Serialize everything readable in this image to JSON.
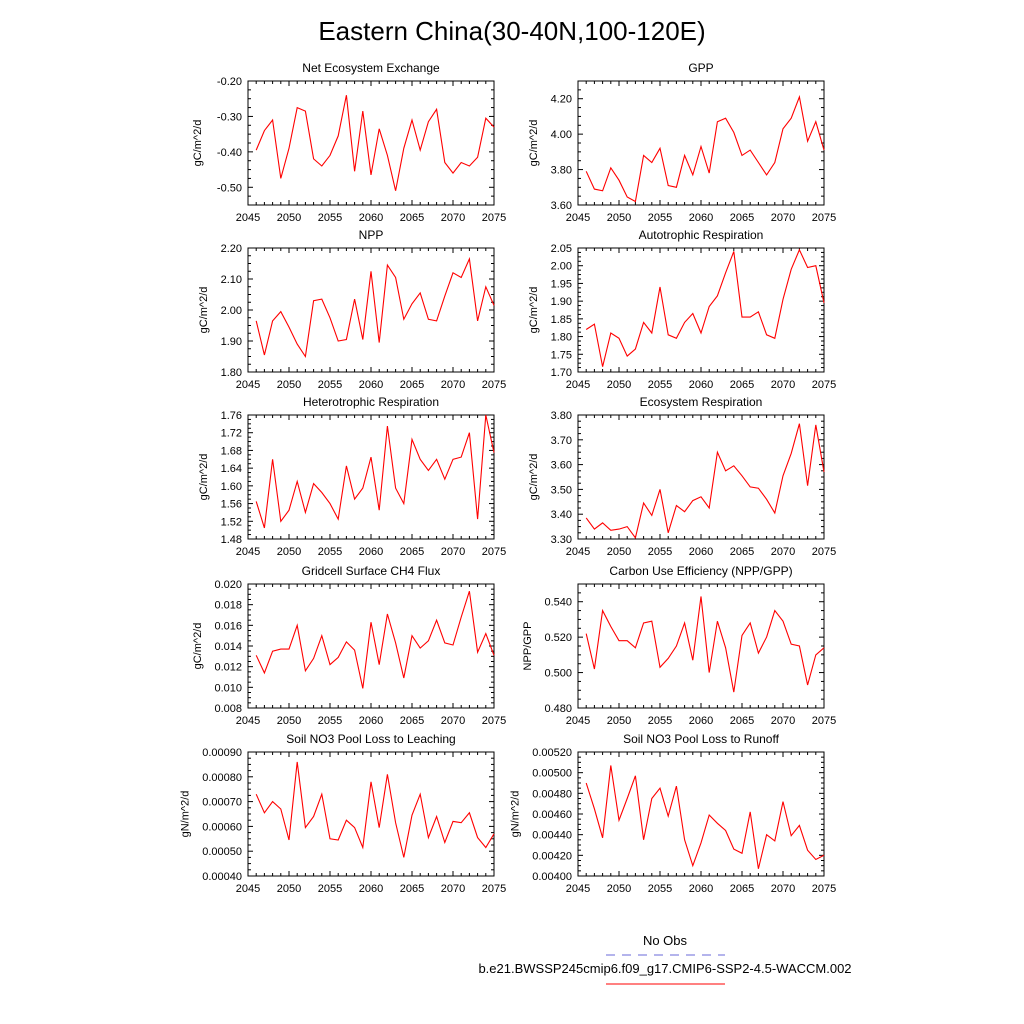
{
  "title": "Eastern China(30-40N,100-120E)",
  "legend": {
    "obs_label": "No Obs",
    "model_label": "b.e21.BWSSP245cmip6.f09_g17.CMIP6-SSP2-4.5-WACCM.002",
    "obs_color": "#6a6ad8",
    "model_color": "#ff0000"
  },
  "line_color": "#ff0000",
  "chart_data": [
    {
      "type": "line",
      "title": "Net Ecosystem Exchange",
      "ylabel": "gC/m^2/d",
      "xlim": [
        2045,
        2075
      ],
      "xticks": [
        "2045",
        "2050",
        "2055",
        "2060",
        "2065",
        "2070",
        "2075"
      ],
      "ylim": [
        -0.55,
        -0.2
      ],
      "yticks": [
        "-0.50",
        "-0.40",
        "-0.30",
        "-0.20"
      ],
      "x": [
        2046,
        2047,
        2048,
        2049,
        2050,
        2051,
        2052,
        2053,
        2054,
        2055,
        2056,
        2057,
        2058,
        2059,
        2060,
        2061,
        2062,
        2063,
        2064,
        2065,
        2066,
        2067,
        2068,
        2069,
        2070,
        2071,
        2072,
        2073,
        2074,
        2075
      ],
      "values": [
        -0.395,
        -0.34,
        -0.31,
        -0.475,
        -0.39,
        -0.275,
        -0.285,
        -0.42,
        -0.44,
        -0.41,
        -0.355,
        -0.24,
        -0.455,
        -0.285,
        -0.465,
        -0.335,
        -0.41,
        -0.51,
        -0.39,
        -0.31,
        -0.395,
        -0.315,
        -0.28,
        -0.43,
        -0.46,
        -0.43,
        -0.44,
        -0.415,
        -0.305,
        -0.33
      ]
    },
    {
      "type": "line",
      "title": "GPP",
      "ylabel": "gC/m^2/d",
      "xlim": [
        2045,
        2075
      ],
      "xticks": [
        "2045",
        "2050",
        "2055",
        "2060",
        "2065",
        "2070",
        "2075"
      ],
      "ylim": [
        3.6,
        4.3
      ],
      "yticks": [
        "3.60",
        "3.80",
        "4.00",
        "4.20"
      ],
      "x": [
        2046,
        2047,
        2048,
        2049,
        2050,
        2051,
        2052,
        2053,
        2054,
        2055,
        2056,
        2057,
        2058,
        2059,
        2060,
        2061,
        2062,
        2063,
        2064,
        2065,
        2066,
        2067,
        2068,
        2069,
        2070,
        2071,
        2072,
        2073,
        2074,
        2075
      ],
      "values": [
        3.79,
        3.69,
        3.68,
        3.81,
        3.74,
        3.645,
        3.62,
        3.88,
        3.84,
        3.92,
        3.71,
        3.7,
        3.88,
        3.77,
        3.93,
        3.78,
        4.07,
        4.09,
        4.01,
        3.88,
        3.91,
        3.84,
        3.77,
        3.84,
        4.03,
        4.09,
        4.21,
        3.96,
        4.07,
        3.91
      ]
    },
    {
      "type": "line",
      "title": "NPP",
      "ylabel": "gC/m^2/d",
      "xlim": [
        2045,
        2075
      ],
      "xticks": [
        "2045",
        "2050",
        "2055",
        "2060",
        "2065",
        "2070",
        "2075"
      ],
      "ylim": [
        1.8,
        2.2
      ],
      "yticks": [
        "1.80",
        "1.90",
        "2.00",
        "2.10",
        "2.20"
      ],
      "x": [
        2046,
        2047,
        2048,
        2049,
        2050,
        2051,
        2052,
        2053,
        2054,
        2055,
        2056,
        2057,
        2058,
        2059,
        2060,
        2061,
        2062,
        2063,
        2064,
        2065,
        2066,
        2067,
        2068,
        2069,
        2070,
        2071,
        2072,
        2073,
        2074,
        2075
      ],
      "values": [
        1.965,
        1.855,
        1.965,
        1.995,
        1.945,
        1.89,
        1.85,
        2.03,
        2.035,
        1.975,
        1.9,
        1.905,
        2.035,
        1.905,
        2.125,
        1.895,
        2.145,
        2.105,
        1.97,
        2.02,
        2.055,
        1.97,
        1.965,
        2.045,
        2.12,
        2.105,
        2.165,
        1.965,
        2.075,
        2.015
      ]
    },
    {
      "type": "line",
      "title": "Autotrophic Respiration",
      "ylabel": "gC/m^2/d",
      "xlim": [
        2045,
        2075
      ],
      "xticks": [
        "2045",
        "2050",
        "2055",
        "2060",
        "2065",
        "2070",
        "2075"
      ],
      "ylim": [
        1.7,
        2.05
      ],
      "yticks": [
        "1.70",
        "1.75",
        "1.80",
        "1.85",
        "1.90",
        "1.95",
        "2.00",
        "2.05"
      ],
      "x": [
        2046,
        2047,
        2048,
        2049,
        2050,
        2051,
        2052,
        2053,
        2054,
        2055,
        2056,
        2057,
        2058,
        2059,
        2060,
        2061,
        2062,
        2063,
        2064,
        2065,
        2066,
        2067,
        2068,
        2069,
        2070,
        2071,
        2072,
        2073,
        2074,
        2075
      ],
      "values": [
        1.82,
        1.835,
        1.715,
        1.81,
        1.795,
        1.745,
        1.765,
        1.84,
        1.81,
        1.94,
        1.805,
        1.795,
        1.84,
        1.865,
        1.81,
        1.885,
        1.915,
        1.98,
        2.04,
        1.855,
        1.855,
        1.87,
        1.805,
        1.795,
        1.905,
        1.99,
        2.045,
        1.995,
        2.0,
        1.895
      ]
    },
    {
      "type": "line",
      "title": "Heterotrophic Respiration",
      "ylabel": "gC/m^2/d",
      "xlim": [
        2045,
        2075
      ],
      "xticks": [
        "2045",
        "2050",
        "2055",
        "2060",
        "2065",
        "2070",
        "2075"
      ],
      "ylim": [
        1.48,
        1.76
      ],
      "yticks": [
        "1.48",
        "1.52",
        "1.56",
        "1.60",
        "1.64",
        "1.68",
        "1.72",
        "1.76"
      ],
      "x": [
        2046,
        2047,
        2048,
        2049,
        2050,
        2051,
        2052,
        2053,
        2054,
        2055,
        2056,
        2057,
        2058,
        2059,
        2060,
        2061,
        2062,
        2063,
        2064,
        2065,
        2066,
        2067,
        2068,
        2069,
        2070,
        2071,
        2072,
        2073,
        2074,
        2075
      ],
      "values": [
        1.565,
        1.505,
        1.66,
        1.52,
        1.545,
        1.61,
        1.54,
        1.605,
        1.585,
        1.56,
        1.525,
        1.645,
        1.57,
        1.595,
        1.665,
        1.545,
        1.735,
        1.595,
        1.56,
        1.705,
        1.66,
        1.635,
        1.66,
        1.615,
        1.66,
        1.665,
        1.72,
        1.525,
        1.76,
        1.675
      ]
    },
    {
      "type": "line",
      "title": "Ecosystem Respiration",
      "ylabel": "gC/m^2/d",
      "xlim": [
        2045,
        2075
      ],
      "xticks": [
        "2045",
        "2050",
        "2055",
        "2060",
        "2065",
        "2070",
        "2075"
      ],
      "ylim": [
        3.3,
        3.8
      ],
      "yticks": [
        "3.30",
        "3.40",
        "3.50",
        "3.60",
        "3.70",
        "3.80"
      ],
      "x": [
        2046,
        2047,
        2048,
        2049,
        2050,
        2051,
        2052,
        2053,
        2054,
        2055,
        2056,
        2057,
        2058,
        2059,
        2060,
        2061,
        2062,
        2063,
        2064,
        2065,
        2066,
        2067,
        2068,
        2069,
        2070,
        2071,
        2072,
        2073,
        2074,
        2075
      ],
      "values": [
        3.385,
        3.34,
        3.365,
        3.335,
        3.34,
        3.35,
        3.305,
        3.445,
        3.395,
        3.5,
        3.325,
        3.435,
        3.41,
        3.455,
        3.47,
        3.425,
        3.65,
        3.575,
        3.595,
        3.555,
        3.51,
        3.505,
        3.46,
        3.405,
        3.555,
        3.645,
        3.765,
        3.515,
        3.76,
        3.57
      ]
    },
    {
      "type": "line",
      "title": "Gridcell Surface CH4 Flux",
      "ylabel": "gC/m^2/d",
      "xlim": [
        2045,
        2075
      ],
      "xticks": [
        "2045",
        "2050",
        "2055",
        "2060",
        "2065",
        "2070",
        "2075"
      ],
      "ylim": [
        0.008,
        0.02
      ],
      "yticks": [
        "0.008",
        "0.010",
        "0.012",
        "0.014",
        "0.016",
        "0.018",
        "0.020"
      ],
      "x": [
        2046,
        2047,
        2048,
        2049,
        2050,
        2051,
        2052,
        2053,
        2054,
        2055,
        2056,
        2057,
        2058,
        2059,
        2060,
        2061,
        2062,
        2063,
        2064,
        2065,
        2066,
        2067,
        2068,
        2069,
        2070,
        2071,
        2072,
        2073,
        2074,
        2075
      ],
      "values": [
        0.0131,
        0.0114,
        0.0135,
        0.0137,
        0.0137,
        0.016,
        0.0116,
        0.0128,
        0.015,
        0.0122,
        0.0129,
        0.0144,
        0.0136,
        0.0099,
        0.0163,
        0.0122,
        0.0171,
        0.0143,
        0.0109,
        0.015,
        0.0138,
        0.0145,
        0.0165,
        0.0143,
        0.0141,
        0.0168,
        0.0193,
        0.0134,
        0.0152,
        0.0131
      ]
    },
    {
      "type": "line",
      "title": "Carbon Use Efficiency (NPP/GPP)",
      "ylabel": "NPP/GPP",
      "xlim": [
        2045,
        2075
      ],
      "xticks": [
        "2045",
        "2050",
        "2055",
        "2060",
        "2065",
        "2070",
        "2075"
      ],
      "ylim": [
        0.48,
        0.55
      ],
      "yticks": [
        "0.480",
        "0.500",
        "0.520",
        "0.540"
      ],
      "x": [
        2046,
        2047,
        2048,
        2049,
        2050,
        2051,
        2052,
        2053,
        2054,
        2055,
        2056,
        2057,
        2058,
        2059,
        2060,
        2061,
        2062,
        2063,
        2064,
        2065,
        2066,
        2067,
        2068,
        2069,
        2070,
        2071,
        2072,
        2073,
        2074,
        2075
      ],
      "values": [
        0.522,
        0.502,
        0.535,
        0.526,
        0.518,
        0.518,
        0.514,
        0.528,
        0.529,
        0.503,
        0.508,
        0.515,
        0.528,
        0.507,
        0.543,
        0.5,
        0.529,
        0.514,
        0.489,
        0.521,
        0.528,
        0.511,
        0.52,
        0.535,
        0.529,
        0.516,
        0.515,
        0.493,
        0.51,
        0.514
      ]
    },
    {
      "type": "line",
      "title": "Soil NO3 Pool Loss to Leaching",
      "ylabel": "gN/m^2/d",
      "xlim": [
        2045,
        2075
      ],
      "xticks": [
        "2045",
        "2050",
        "2055",
        "2060",
        "2065",
        "2070",
        "2075"
      ],
      "ylim": [
        0.0004,
        0.0009
      ],
      "yticks": [
        "0.00040",
        "0.00050",
        "0.00060",
        "0.00070",
        "0.00080",
        "0.00090"
      ],
      "x": [
        2046,
        2047,
        2048,
        2049,
        2050,
        2051,
        2052,
        2053,
        2054,
        2055,
        2056,
        2057,
        2058,
        2059,
        2060,
        2061,
        2062,
        2063,
        2064,
        2065,
        2066,
        2067,
        2068,
        2069,
        2070,
        2071,
        2072,
        2073,
        2074,
        2075
      ],
      "values": [
        0.00073,
        0.000655,
        0.0007,
        0.00067,
        0.000545,
        0.00086,
        0.000595,
        0.00064,
        0.00073,
        0.00055,
        0.000545,
        0.000625,
        0.000595,
        0.000515,
        0.00078,
        0.000595,
        0.00081,
        0.000615,
        0.000475,
        0.000645,
        0.00073,
        0.000555,
        0.00064,
        0.000535,
        0.00062,
        0.000615,
        0.000655,
        0.000555,
        0.000515,
        0.00057
      ]
    },
    {
      "type": "line",
      "title": "Soil NO3 Pool Loss to Runoff",
      "ylabel": "gN/m^2/d",
      "xlim": [
        2045,
        2075
      ],
      "xticks": [
        "2045",
        "2050",
        "2055",
        "2060",
        "2065",
        "2070",
        "2075"
      ],
      "ylim": [
        0.004,
        0.0052
      ],
      "yticks": [
        "0.00400",
        "0.00420",
        "0.00440",
        "0.00460",
        "0.00480",
        "0.00500",
        "0.00520"
      ],
      "x": [
        2046,
        2047,
        2048,
        2049,
        2050,
        2051,
        2052,
        2053,
        2054,
        2055,
        2056,
        2057,
        2058,
        2059,
        2060,
        2061,
        2062,
        2063,
        2064,
        2065,
        2066,
        2067,
        2068,
        2069,
        2070,
        2071,
        2072,
        2073,
        2074,
        2075
      ],
      "values": [
        0.0049,
        0.00465,
        0.00437,
        0.00507,
        0.00454,
        0.00475,
        0.00497,
        0.00435,
        0.00475,
        0.00485,
        0.00458,
        0.00487,
        0.00435,
        0.0041,
        0.00432,
        0.00459,
        0.00451,
        0.00444,
        0.00426,
        0.00422,
        0.00462,
        0.00407,
        0.0044,
        0.00434,
        0.00472,
        0.00439,
        0.00449,
        0.00425,
        0.00416,
        0.0042
      ]
    }
  ]
}
